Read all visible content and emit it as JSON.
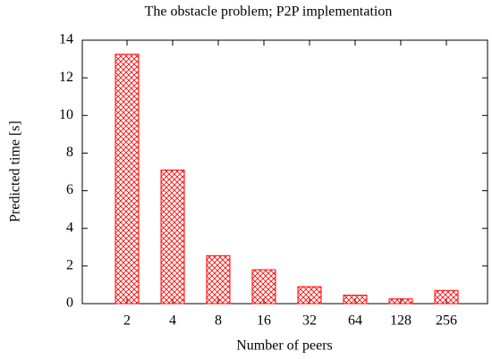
{
  "chart_data": {
    "type": "bar",
    "title": "The obstacle problem; P2P implementation",
    "x_label": "Number of peers",
    "y_label": "Predicted time [s]",
    "categories": [
      "2",
      "4",
      "8",
      "16",
      "32",
      "64",
      "128",
      "256"
    ],
    "values": [
      13.25,
      7.1,
      2.55,
      1.8,
      0.9,
      0.45,
      0.25,
      0.7
    ],
    "color": "#ff0000",
    "ylim": [
      0,
      14
    ],
    "yticks": [
      0,
      2,
      4,
      6,
      8,
      10,
      12,
      14
    ]
  }
}
